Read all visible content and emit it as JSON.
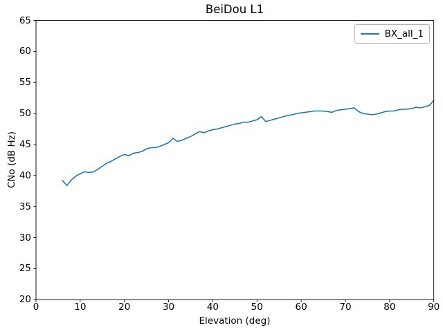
{
  "figure": {
    "title": "BeiDou L1",
    "xlabel": "Elevation (deg)",
    "ylabel": "CNo (dB Hz)"
  },
  "legend": {
    "position": "upper right",
    "entries": [
      {
        "label": "BX_all_1",
        "color": "#1f77b4"
      }
    ]
  },
  "chart_data": {
    "type": "line",
    "title": "BeiDou L1",
    "xlabel": "Elevation (deg)",
    "ylabel": "CNo (dB Hz)",
    "xlim": [
      0,
      90
    ],
    "ylim": [
      20,
      65
    ],
    "xticks": [
      0,
      10,
      20,
      30,
      40,
      50,
      60,
      70,
      80,
      90
    ],
    "yticks": [
      20,
      25,
      30,
      35,
      40,
      45,
      50,
      55,
      60,
      65
    ],
    "grid": false,
    "legend_position": "upper right",
    "series": [
      {
        "name": "BX_all_1",
        "color": "#1f77b4",
        "x": [
          6,
          7,
          8,
          9,
          10,
          11,
          12,
          13,
          14,
          15,
          16,
          17,
          18,
          19,
          20,
          21,
          22,
          23,
          24,
          25,
          26,
          27,
          28,
          29,
          30,
          31,
          32,
          33,
          34,
          35,
          36,
          37,
          38,
          39,
          40,
          41,
          42,
          43,
          44,
          45,
          46,
          47,
          48,
          49,
          50,
          51,
          52,
          53,
          54,
          55,
          56,
          57,
          58,
          59,
          60,
          61,
          62,
          63,
          64,
          65,
          66,
          67,
          68,
          69,
          70,
          71,
          72,
          73,
          74,
          75,
          76,
          77,
          78,
          79,
          80,
          81,
          82,
          83,
          84,
          85,
          86,
          87,
          88,
          89,
          90
        ],
        "y": [
          39.2,
          38.4,
          39.3,
          39.9,
          40.3,
          40.6,
          40.5,
          40.6,
          41.0,
          41.5,
          42.0,
          42.3,
          42.7,
          43.1,
          43.4,
          43.2,
          43.6,
          43.7,
          43.9,
          44.3,
          44.5,
          44.5,
          44.7,
          45.0,
          45.3,
          46.0,
          45.5,
          45.7,
          46.0,
          46.3,
          46.7,
          47.1,
          46.9,
          47.2,
          47.4,
          47.5,
          47.7,
          47.9,
          48.1,
          48.3,
          48.4,
          48.6,
          48.6,
          48.8,
          49.0,
          49.5,
          48.7,
          48.9,
          49.1,
          49.3,
          49.5,
          49.7,
          49.8,
          50.0,
          50.1,
          50.2,
          50.3,
          50.4,
          50.4,
          50.4,
          50.3,
          50.2,
          50.5,
          50.6,
          50.7,
          50.8,
          50.9,
          50.3,
          50.0,
          49.9,
          49.8,
          49.9,
          50.1,
          50.3,
          50.4,
          50.4,
          50.6,
          50.7,
          50.7,
          50.8,
          51.0,
          50.9,
          51.1,
          51.3,
          52.1
        ]
      }
    ]
  }
}
